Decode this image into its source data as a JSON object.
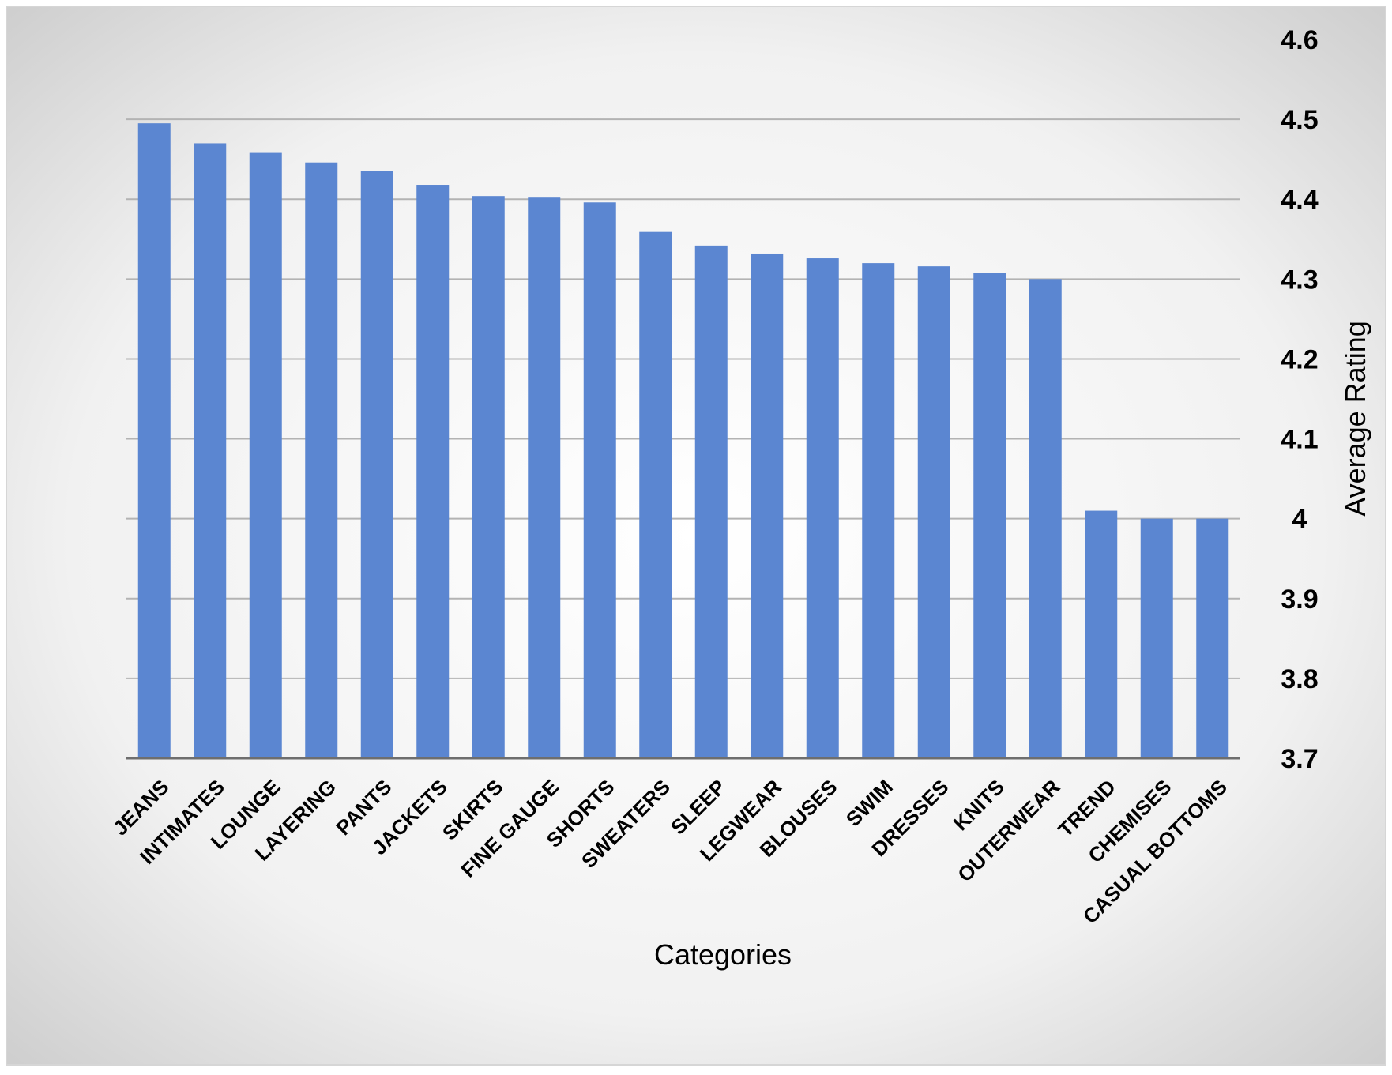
{
  "chart_data": {
    "type": "bar",
    "title": "",
    "xlabel": "Categories",
    "ylabel": "Average Rating",
    "y_axis_side": "right",
    "ylim": [
      3.7,
      4.6
    ],
    "y_ticks": [
      "3.7",
      "3.8",
      "3.9",
      "4",
      "4.1",
      "4.2",
      "4.3",
      "4.4",
      "4.5",
      "4.6"
    ],
    "grid": true,
    "legend": "none",
    "bar_color": "#5b86d1",
    "categories": [
      "JEANS",
      "INTIMATES",
      "LOUNGE",
      "LAYERING",
      "PANTS",
      "JACKETS",
      "SKIRTS",
      "FINE GAUGE",
      "SHORTS",
      "SWEATERS",
      "SLEEP",
      "LEGWEAR",
      "BLOUSES",
      "SWIM",
      "DRESSES",
      "KNITS",
      "OUTERWEAR",
      "TREND",
      "CHEMISES",
      "CASUAL BOTTOMS"
    ],
    "values": [
      4.495,
      4.47,
      4.458,
      4.446,
      4.435,
      4.418,
      4.404,
      4.402,
      4.396,
      4.359,
      4.342,
      4.332,
      4.326,
      4.32,
      4.316,
      4.308,
      4.3,
      4.01,
      4.0,
      4.0
    ]
  }
}
